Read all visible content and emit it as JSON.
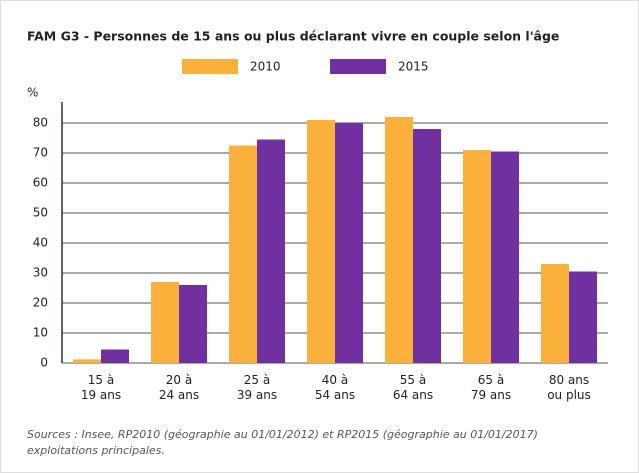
{
  "chart_data": {
    "type": "bar",
    "title": "FAM G3 - Personnes de 15 ans ou plus déclarant vivre en couple selon l'âge",
    "y_label": "%",
    "categories": [
      "15 à\n19 ans",
      "20 à\n24 ans",
      "25 à\n39 ans",
      "40 à\n54 ans",
      "55 à\n64 ans",
      "65 à\n79 ans",
      "80 ans\nou plus"
    ],
    "series": [
      {
        "name": "2010",
        "color": "#fbb03b",
        "values": [
          1.2,
          27,
          72.5,
          81,
          82,
          71,
          33
        ]
      },
      {
        "name": "2015",
        "color": "#7030a0",
        "values": [
          4.5,
          26,
          74.5,
          80,
          78,
          70.5,
          30.5
        ]
      }
    ],
    "ylim": [
      0,
      87
    ],
    "yticks": [
      0,
      10,
      20,
      30,
      40,
      50,
      60,
      70,
      80
    ],
    "grid": true,
    "legend": "top",
    "source": [
      "Sources : Insee, RP2010 (géographie au 01/01/2012) et RP2015 (géographie au 01/01/2017)",
      "exploitations principales."
    ]
  }
}
